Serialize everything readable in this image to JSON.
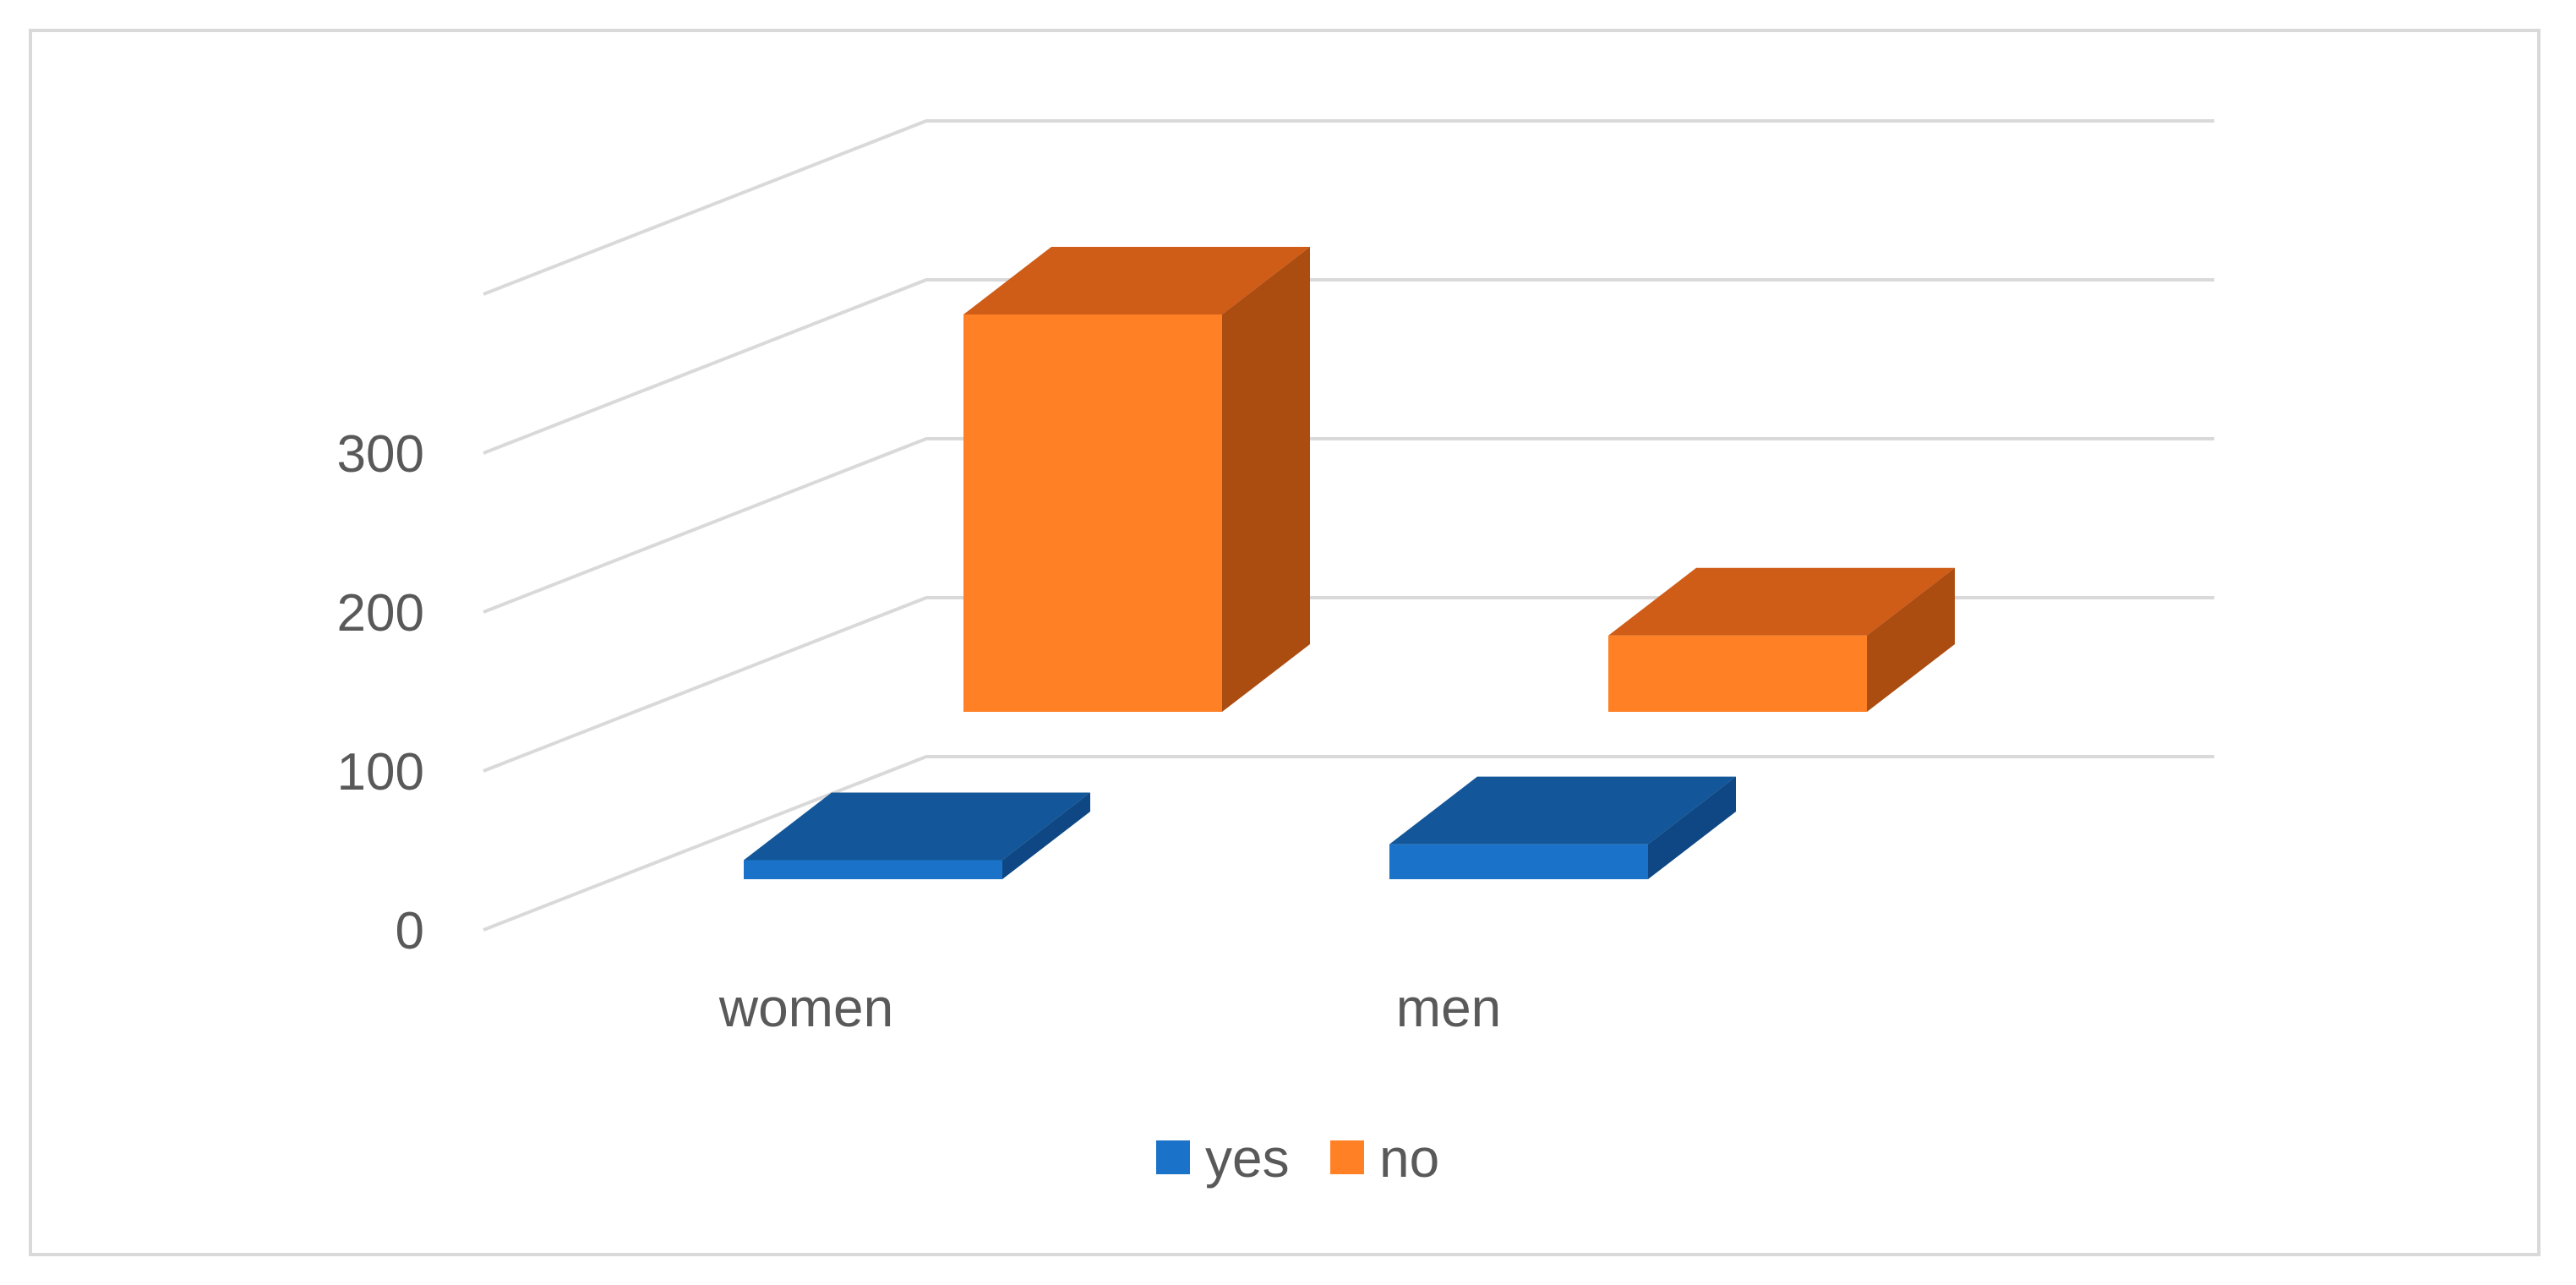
{
  "chart_data": {
    "type": "bar",
    "subtype": "3d-column",
    "categories": [
      "women",
      "men"
    ],
    "series": [
      {
        "name": "yes",
        "values": [
          12,
          22
        ]
      },
      {
        "name": "no",
        "values": [
          250,
          48
        ]
      }
    ],
    "ylim": [
      0,
      300
    ],
    "yticks": [
      "0",
      "100",
      "200",
      "300"
    ],
    "grid": true,
    "legend": "bottom",
    "colors": {
      "yes": {
        "front": "#1a73c8",
        "top": "#13579a",
        "side": "#0e4783"
      },
      "no": {
        "front": "#ff8025",
        "top": "#cf5c17",
        "side": "#ab4c11"
      },
      "grid": "#d9d9d9",
      "text": "#595959"
    }
  }
}
